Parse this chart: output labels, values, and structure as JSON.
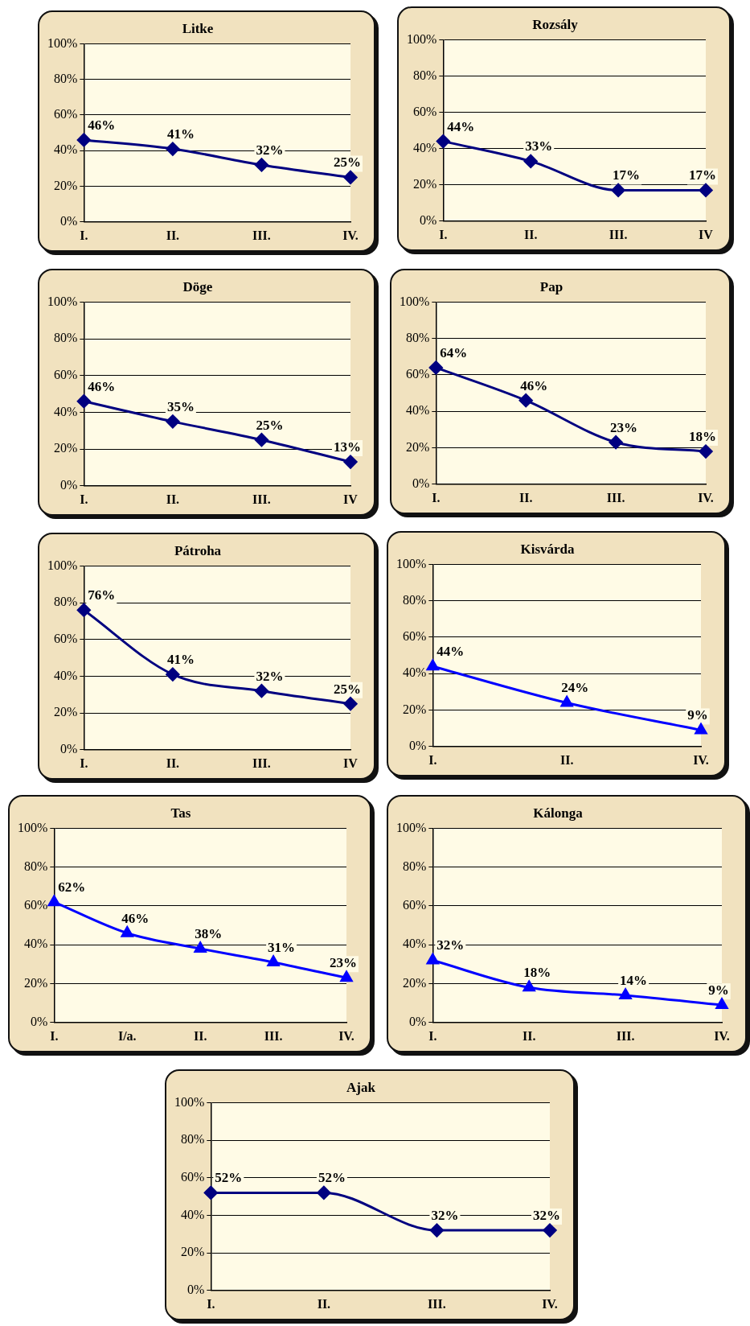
{
  "chart_data": [
    {
      "type": "line",
      "title": "Litke",
      "categories": [
        "I.",
        "II.",
        "III.",
        "IV."
      ],
      "series": [
        {
          "color": "#000080",
          "values": [
            46,
            41,
            32,
            25
          ],
          "value_labels": [
            "46%",
            "41%",
            "32%",
            "25%"
          ]
        }
      ],
      "ylim": [
        0,
        100
      ],
      "yticks": [
        {
          "value": 0,
          "label": "0%"
        },
        {
          "value": 20,
          "label": "20%"
        },
        {
          "value": 40,
          "label": "40%"
        },
        {
          "value": 60,
          "label": "60%"
        },
        {
          "value": 80,
          "label": "80%"
        },
        {
          "value": 100,
          "label": "100%"
        }
      ],
      "grid": "y",
      "marker": "diamond",
      "legend": false
    },
    {
      "type": "line",
      "title": "Rozsály",
      "categories": [
        "I.",
        "II.",
        "III.",
        "IV"
      ],
      "series": [
        {
          "color": "#000080",
          "values": [
            44,
            33,
            17,
            17
          ],
          "value_labels": [
            "44%",
            "33%",
            "17%",
            "17%"
          ]
        }
      ],
      "ylim": [
        0,
        100
      ],
      "yticks": [
        {
          "value": 0,
          "label": "0%"
        },
        {
          "value": 20,
          "label": "20%"
        },
        {
          "value": 40,
          "label": "40%"
        },
        {
          "value": 60,
          "label": "60%"
        },
        {
          "value": 80,
          "label": "80%"
        },
        {
          "value": 100,
          "label": "100%"
        }
      ],
      "grid": "y",
      "marker": "diamond",
      "legend": false
    },
    {
      "type": "line",
      "title": "Döge",
      "categories": [
        "I.",
        "II.",
        "III.",
        "IV"
      ],
      "series": [
        {
          "color": "#000080",
          "values": [
            46,
            35,
            25,
            13
          ],
          "value_labels": [
            "46%",
            "35%",
            "25%",
            "13%"
          ]
        }
      ],
      "ylim": [
        0,
        100
      ],
      "yticks": [
        {
          "value": 0,
          "label": "0%"
        },
        {
          "value": 20,
          "label": "20%"
        },
        {
          "value": 40,
          "label": "40%"
        },
        {
          "value": 60,
          "label": "60%"
        },
        {
          "value": 80,
          "label": "80%"
        },
        {
          "value": 100,
          "label": "100%"
        }
      ],
      "grid": "y",
      "marker": "diamond",
      "legend": false
    },
    {
      "type": "line",
      "title": "Pap",
      "categories": [
        "I.",
        "II.",
        "III.",
        "IV."
      ],
      "series": [
        {
          "color": "#000080",
          "values": [
            64,
            46,
            23,
            18
          ],
          "value_labels": [
            "64%",
            "46%",
            "23%",
            "18%"
          ]
        }
      ],
      "ylim": [
        0,
        100
      ],
      "yticks": [
        {
          "value": 0,
          "label": "0%"
        },
        {
          "value": 20,
          "label": "20%"
        },
        {
          "value": 40,
          "label": "40%"
        },
        {
          "value": 60,
          "label": "60%"
        },
        {
          "value": 80,
          "label": "80%"
        },
        {
          "value": 100,
          "label": "100%"
        }
      ],
      "grid": "y",
      "marker": "diamond",
      "legend": false
    },
    {
      "type": "line",
      "title": "Pátroha",
      "categories": [
        "I.",
        "II.",
        "III.",
        "IV"
      ],
      "series": [
        {
          "color": "#000080",
          "values": [
            76,
            41,
            32,
            25
          ],
          "value_labels": [
            "76%",
            "41%",
            "32%",
            "25%"
          ]
        }
      ],
      "ylim": [
        0,
        100
      ],
      "yticks": [
        {
          "value": 0,
          "label": "0%"
        },
        {
          "value": 20,
          "label": "20%"
        },
        {
          "value": 40,
          "label": "40%"
        },
        {
          "value": 60,
          "label": "60%"
        },
        {
          "value": 80,
          "label": "80%"
        },
        {
          "value": 100,
          "label": "100%"
        }
      ],
      "grid": "y",
      "marker": "diamond",
      "legend": false
    },
    {
      "type": "line",
      "title": "Kisvárda",
      "categories": [
        "I.",
        "II.",
        "IV."
      ],
      "series": [
        {
          "color": "#0000ff",
          "values": [
            44,
            24,
            9
          ],
          "value_labels": [
            "44%",
            "24%",
            "9%"
          ]
        }
      ],
      "ylim": [
        0,
        100
      ],
      "yticks": [
        {
          "value": 0,
          "label": "0%"
        },
        {
          "value": 20,
          "label": "20%"
        },
        {
          "value": 40,
          "label": "40%"
        },
        {
          "value": 60,
          "label": "60%"
        },
        {
          "value": 80,
          "label": "80%"
        },
        {
          "value": 100,
          "label": "100%"
        }
      ],
      "grid": "y",
      "marker": "triangle",
      "legend": false
    },
    {
      "type": "line",
      "title": "Tas",
      "categories": [
        "I.",
        "I/a.",
        "II.",
        "III.",
        "IV."
      ],
      "series": [
        {
          "color": "#0000ff",
          "values": [
            62,
            46,
            38,
            31,
            23
          ],
          "value_labels": [
            "62%",
            "46%",
            "38%",
            "31%",
            "23%"
          ]
        }
      ],
      "ylim": [
        0,
        100
      ],
      "yticks": [
        {
          "value": 0,
          "label": "0%"
        },
        {
          "value": 20,
          "label": "20%"
        },
        {
          "value": 40,
          "label": "40%"
        },
        {
          "value": 60,
          "label": "60%"
        },
        {
          "value": 80,
          "label": "80%"
        },
        {
          "value": 100,
          "label": "100%"
        }
      ],
      "grid": "y",
      "marker": "triangle",
      "legend": false
    },
    {
      "type": "line",
      "title": "Kálonga",
      "categories": [
        "I.",
        "II.",
        "III.",
        "IV."
      ],
      "series": [
        {
          "color": "#0000ff",
          "values": [
            32,
            18,
            14,
            9
          ],
          "value_labels": [
            "32%",
            "18%",
            "14%",
            "9%"
          ]
        }
      ],
      "ylim": [
        0,
        100
      ],
      "yticks": [
        {
          "value": 0,
          "label": "0%"
        },
        {
          "value": 20,
          "label": "20%"
        },
        {
          "value": 40,
          "label": "40%"
        },
        {
          "value": 60,
          "label": "60%"
        },
        {
          "value": 80,
          "label": "80%"
        },
        {
          "value": 100,
          "label": "100%"
        }
      ],
      "grid": "y",
      "marker": "triangle",
      "legend": false
    },
    {
      "type": "line",
      "title": "Ajak",
      "categories": [
        "I.",
        "II.",
        "III.",
        "IV."
      ],
      "series": [
        {
          "color": "#000080",
          "values": [
            52,
            52,
            32,
            32
          ],
          "value_labels": [
            "52%",
            "52%",
            "32%",
            "32%"
          ]
        }
      ],
      "ylim": [
        0,
        100
      ],
      "yticks": [
        {
          "value": 0,
          "label": "0%"
        },
        {
          "value": 20,
          "label": "20%"
        },
        {
          "value": 40,
          "label": "40%"
        },
        {
          "value": 60,
          "label": "60%"
        },
        {
          "value": 80,
          "label": "80%"
        },
        {
          "value": 100,
          "label": "100%"
        }
      ],
      "grid": "y",
      "marker": "diamond",
      "legend": false
    }
  ]
}
